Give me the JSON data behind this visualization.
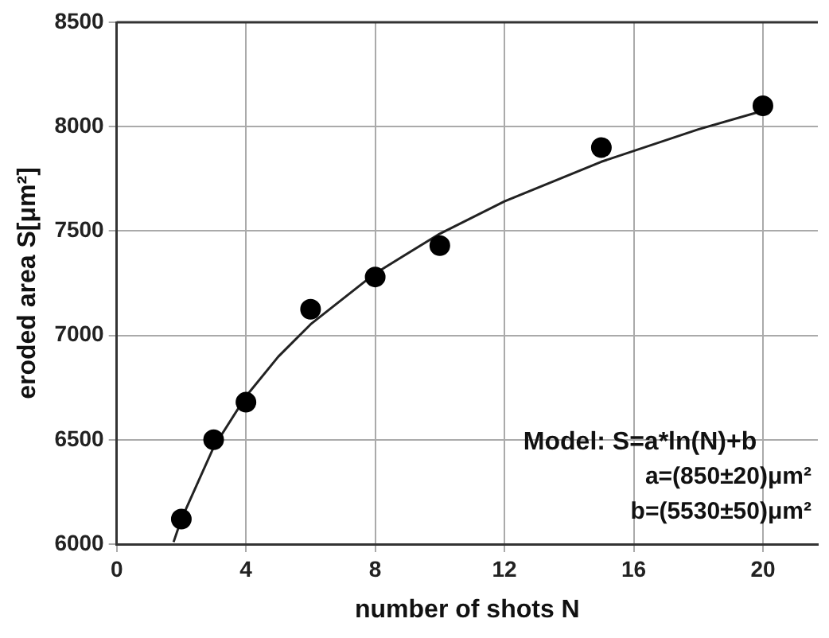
{
  "chart_data": {
    "type": "scatter",
    "xlabel": "number of shots N",
    "ylabel": "eroded area S[μm²]",
    "xlim": [
      0,
      21.7
    ],
    "xticks": [
      0,
      4,
      8,
      12,
      16,
      20
    ],
    "ylim": [
      6000,
      8500
    ],
    "yticks": [
      6000,
      6500,
      7000,
      7500,
      8000,
      8500
    ],
    "grid": true,
    "marker": "circle",
    "series": [
      {
        "color": "#000000",
        "x": [
          2,
          3,
          4,
          6,
          8,
          10,
          15,
          20
        ],
        "values": [
          6120,
          6500,
          6680,
          7125,
          7280,
          7430,
          7900,
          8100
        ]
      },
      {
        "type": "line",
        "color": "#222222",
        "marker": "none",
        "x": [
          1.76,
          2,
          3,
          4,
          5,
          6,
          8,
          10,
          12,
          15,
          18,
          20
        ],
        "values": [
          6010,
          6119,
          6464,
          6708,
          6898,
          7053,
          7297,
          7487,
          7642,
          7832,
          7987,
          8076
        ]
      }
    ],
    "annotations": [
      "Model: S=a*ln(N)+b",
      "a=(850±20)μm²",
      "b=(5530±50)μm²"
    ]
  }
}
